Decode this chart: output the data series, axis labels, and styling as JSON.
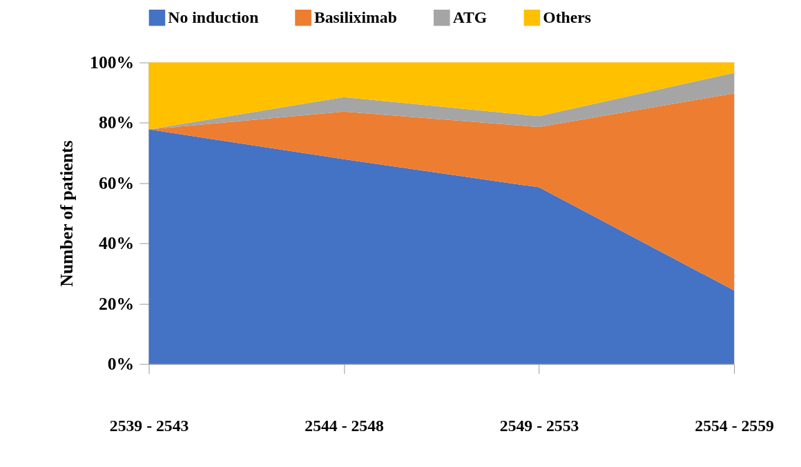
{
  "chart_data": {
    "type": "area",
    "stacked": true,
    "ylabel": "Number of patients",
    "categories": [
      "2539 - 2543",
      "2544 - 2548",
      "2549 - 2553",
      "2554 - 2559"
    ],
    "series": [
      {
        "name": "No induction",
        "color": "#4472c4",
        "values": [
          77.8,
          67.9,
          58.6,
          24.4
        ]
      },
      {
        "name": "Basiliximab",
        "color": "#ed7d31",
        "values": [
          0,
          15.8,
          20.0,
          65.4
        ]
      },
      {
        "name": "ATG",
        "color": "#a5a5a5",
        "values": [
          0,
          4.8,
          3.6,
          6.8
        ]
      },
      {
        "name": "Others",
        "color": "#ffc000",
        "values": [
          22.2,
          11.5,
          17.8,
          3.4
        ]
      }
    ],
    "ylim": [
      0,
      100
    ],
    "yticks": [
      {
        "value": 0,
        "label": "0%"
      },
      {
        "value": 20,
        "label": "20%"
      },
      {
        "value": 40,
        "label": "40%"
      },
      {
        "value": 60,
        "label": "60%"
      },
      {
        "value": 80,
        "label": "80%"
      },
      {
        "value": 100,
        "label": "100%"
      }
    ],
    "grid": false,
    "legend": "top"
  }
}
